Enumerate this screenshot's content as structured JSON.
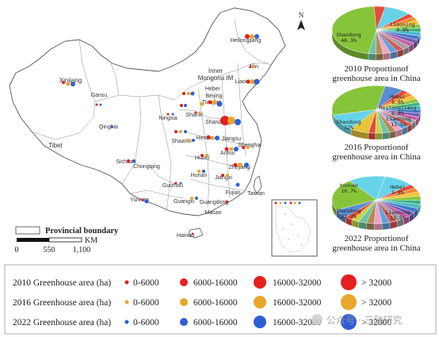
{
  "north": "N",
  "boundary_label": "Provincial boundary",
  "scale": {
    "unit": "KM",
    "ticks": [
      "0",
      "550",
      "1,100"
    ]
  },
  "colors": {
    "y2010": "#e4201f",
    "y2016": "#e8a62a",
    "y2022": "#2f5fd6"
  },
  "provinces": [
    "Heilongjiang",
    "Jilin",
    "Inner Mongoria IM",
    "Liaoning",
    "Xinjiang",
    "Gansu",
    "Hebei",
    "Beijing",
    "Tianjing",
    "Ningxia",
    "Shanxi",
    "Shandong",
    "Qinghai",
    "Henan",
    "Jiangsu",
    "Shanghai",
    "Anhui",
    "Tibet",
    "Shaanxi",
    "Sichuan",
    "Hubei",
    "Chongqing",
    "Zhejiang",
    "Hunan",
    "Jiangxi",
    "Fujian",
    "Guizhou",
    "Yunnan",
    "Guangxi",
    "Guangdong",
    "Taiwan",
    "Macao",
    "Hainan"
  ],
  "pies": [
    {
      "caption_lines": [
        "2010 Proportionof",
        "greenhouse area in China"
      ],
      "labels": [
        {
          "lines": [
            "Liaoning",
            "9.8%"
          ]
        },
        {
          "lines": [
            "Shandong",
            "46.3%"
          ]
        }
      ]
    },
    {
      "caption_lines": [
        "2016 Proportionof",
        "greenhouse area in China"
      ],
      "labels": [
        {
          "lines": [
            "Hebei",
            "6.8%",
            "Heilongjiang",
            "6.8%"
          ]
        },
        {
          "lines": [
            "Liaoning",
            "11.5%"
          ]
        },
        {
          "lines": [
            "Shandong",
            "32%"
          ]
        }
      ]
    },
    {
      "caption_lines": [
        "2022 Proportionof",
        "greenhouse area in China"
      ],
      "labels": [
        {
          "lines": [
            "Yunnan",
            "10.7%"
          ]
        },
        {
          "lines": [
            "Hebei",
            "5.8%"
          ]
        },
        {
          "lines": [
            "Shandong",
            "21.7%"
          ]
        },
        {
          "lines": [
            "Liaoning",
            "13.5%"
          ]
        }
      ]
    }
  ],
  "legend": {
    "rows": [
      {
        "title": "2010 Greenhouse area (ha)",
        "color_key": "y2010"
      },
      {
        "title": "2016 Greenhouse area (ha)",
        "color_key": "y2016"
      },
      {
        "title": "2022 Greenhouse area (ha)",
        "color_key": "y2022"
      }
    ],
    "classes": [
      "0-6000",
      "6000-16000",
      "16000-32000",
      "> 32000"
    ]
  },
  "watermark": "公众号 · 三融研究"
}
